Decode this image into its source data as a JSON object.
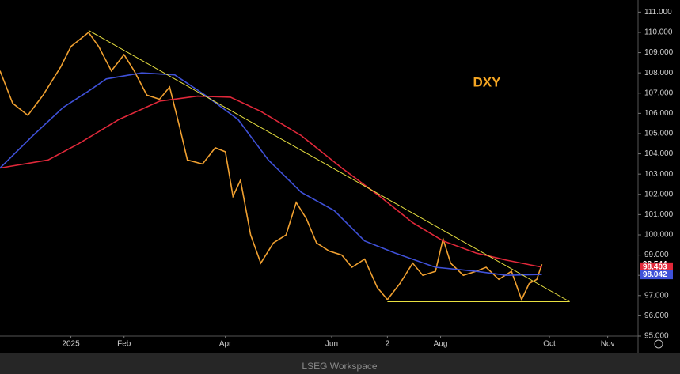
{
  "chart_data": {
    "type": "line",
    "title": "DXY",
    "title_color": "#f5a623",
    "footer": "LSEG Workspace",
    "xlim": [
      -28,
      224
    ],
    "ylim": [
      95,
      111.6
    ],
    "xticks": [
      {
        "value": 0,
        "label": "2025"
      },
      {
        "value": 21,
        "label": "Feb"
      },
      {
        "value": 61,
        "label": "Apr"
      },
      {
        "value": 103,
        "label": "Jun"
      },
      {
        "value": 125,
        "label": "2"
      },
      {
        "value": 146,
        "label": "Aug"
      },
      {
        "value": 189,
        "label": "Oct"
      },
      {
        "value": 212,
        "label": "Nov"
      }
    ],
    "yticks": [
      {
        "value": 95,
        "label": "95.000"
      },
      {
        "value": 96,
        "label": "96.000"
      },
      {
        "value": 97,
        "label": "97.000"
      },
      {
        "value": 98,
        "label": "98.000"
      },
      {
        "value": 99,
        "label": "99.000"
      },
      {
        "value": 100,
        "label": "100.000"
      },
      {
        "value": 101,
        "label": "101.000"
      },
      {
        "value": 102,
        "label": "102.000"
      },
      {
        "value": 103,
        "label": "103.000"
      },
      {
        "value": 104,
        "label": "104.000"
      },
      {
        "value": 105,
        "label": "105.000"
      },
      {
        "value": 106,
        "label": "106.000"
      },
      {
        "value": 107,
        "label": "107.000"
      },
      {
        "value": 108,
        "label": "108.000"
      },
      {
        "value": 109,
        "label": "109.000"
      },
      {
        "value": 110,
        "label": "110.000"
      },
      {
        "value": 111,
        "label": "111.000"
      }
    ],
    "series": [
      {
        "color": "#f0a030",
        "last_label_bg": "#000000",
        "x": [
          -28,
          -23,
          -17,
          -11,
          -4,
          0,
          7,
          11,
          16,
          21,
          25,
          30,
          35,
          39,
          43,
          46,
          52,
          57,
          61,
          64,
          67,
          71,
          75,
          80,
          85,
          89,
          93,
          97,
          102,
          107,
          111,
          116,
          121,
          125,
          130,
          135,
          139,
          144,
          147,
          150,
          155,
          160,
          164,
          169,
          174,
          178,
          181,
          184,
          186
        ],
        "values": [
          108.1,
          106.5,
          105.9,
          106.9,
          108.3,
          109.3,
          110.0,
          109.3,
          108.1,
          108.9,
          108.1,
          106.9,
          106.7,
          107.3,
          105.3,
          103.7,
          103.5,
          104.3,
          104.1,
          101.9,
          102.7,
          100.0,
          98.6,
          99.6,
          100.0,
          101.6,
          100.8,
          99.6,
          99.2,
          99.0,
          98.4,
          98.8,
          97.4,
          96.8,
          97.6,
          98.6,
          98.0,
          98.2,
          99.8,
          98.6,
          98.0,
          98.2,
          98.4,
          97.8,
          98.2,
          96.8,
          97.6,
          97.8,
          98.544
        ]
      },
      {
        "color": "#e0283a",
        "last_label_bg": "#e0283a",
        "x": [
          -28,
          -9,
          3,
          19,
          35,
          50,
          63,
          75,
          91,
          107,
          122,
          135,
          147,
          160,
          172,
          186
        ],
        "values": [
          103.3,
          103.7,
          104.5,
          105.7,
          106.6,
          106.85,
          106.8,
          106.1,
          104.9,
          103.3,
          101.9,
          100.6,
          99.7,
          99.1,
          98.75,
          98.403
        ]
      },
      {
        "color": "#3f51d8",
        "last_label_bg": "#3f51d8",
        "x": [
          -28,
          -15,
          -3,
          7,
          14,
          28,
          41,
          53,
          66,
          78,
          91,
          104,
          116,
          128,
          144,
          160,
          172,
          186
        ],
        "values": [
          103.3,
          104.9,
          106.3,
          107.1,
          107.7,
          108.0,
          107.9,
          106.9,
          105.7,
          103.7,
          102.1,
          101.2,
          99.7,
          99.1,
          98.4,
          98.2,
          98.0,
          98.042
        ]
      },
      {
        "color": "#e8e040",
        "x": [
          7,
          197
        ],
        "values": [
          110.1,
          96.7
        ]
      },
      {
        "color": "#e8e040",
        "x": [
          125,
          197
        ],
        "values": [
          96.7,
          96.7
        ]
      }
    ]
  }
}
